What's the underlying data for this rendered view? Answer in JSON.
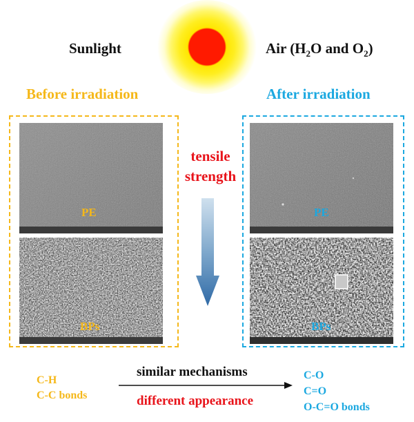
{
  "header": {
    "sunlight_label": "Sunlight",
    "air_label_prefix": "Air (H",
    "air_sub1": "2",
    "air_mid": "O and O",
    "air_sub2": "2",
    "air_suffix": ")"
  },
  "before": {
    "label": "Before irradiation",
    "pe_label": "PE",
    "bps_label": "BPs",
    "color": "#f5b81a"
  },
  "after": {
    "label": "After irradiation",
    "pe_label": "PE",
    "bps_label": "BPs",
    "color": "#1ba8e0"
  },
  "center": {
    "tensile_line1": "tensile",
    "tensile_line2": "strength",
    "tensile_color": "#e8141b"
  },
  "bottom": {
    "left_line1": "C-H",
    "left_line2": "C-C bonds",
    "similar": "similar mechanisms",
    "different": "different appearance",
    "right_line1": "C-O",
    "right_line2": "C=O",
    "right_line3": "O-C=O bonds"
  }
}
